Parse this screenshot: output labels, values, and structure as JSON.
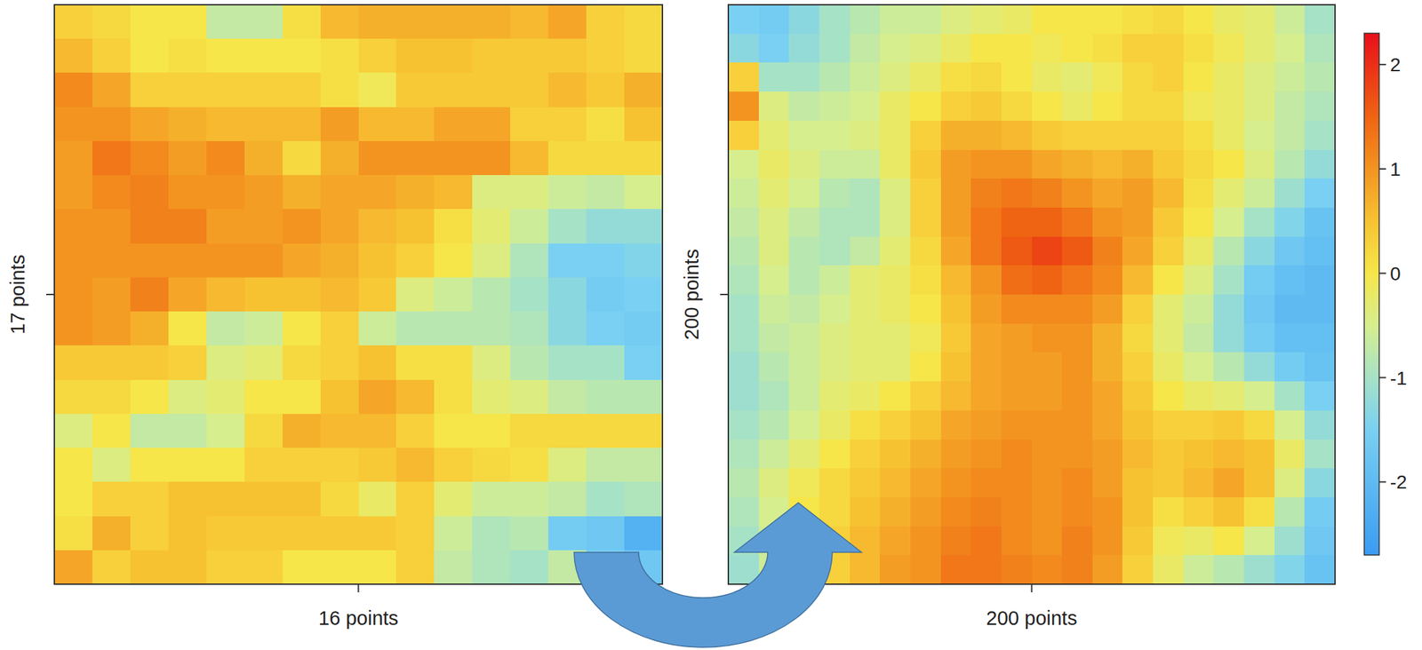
{
  "chart_data": [
    {
      "type": "heatmap",
      "x_label": "16 points",
      "y_label": "17 points",
      "cells": [
        [
          0.3,
          0.2,
          0,
          0,
          -0.7,
          -0.7,
          0.1,
          0.6,
          0.7,
          0.7,
          0.7,
          0.7,
          0.6,
          0.8,
          0.3,
          0.2
        ],
        [
          0.6,
          0.3,
          0,
          0.1,
          0,
          0,
          0,
          0.1,
          0.3,
          0.5,
          0.5,
          0.4,
          0.4,
          0.4,
          0.3,
          0.2
        ],
        [
          1.1,
          0.8,
          0.3,
          0.3,
          0.3,
          0.3,
          0.3,
          0.1,
          -0.1,
          0.4,
          0.4,
          0.4,
          0.4,
          0.6,
          0.4,
          0.7
        ],
        [
          1.0,
          1.0,
          0.8,
          0.7,
          0.6,
          0.6,
          0.6,
          0.9,
          0.6,
          0.6,
          0.8,
          0.8,
          0.3,
          0.3,
          0.1,
          0.5
        ],
        [
          0.9,
          1.3,
          1.1,
          0.9,
          1.1,
          0.7,
          0.2,
          0.7,
          1.0,
          1.0,
          1.0,
          1.0,
          0.6,
          0.2,
          0.2,
          0.2
        ],
        [
          0.9,
          1.1,
          1.2,
          1.0,
          1.0,
          0.9,
          0.7,
          0.8,
          0.8,
          0.7,
          0.6,
          -0.4,
          -0.4,
          -0.6,
          -0.7,
          -0.5
        ],
        [
          1.0,
          1.0,
          1.2,
          1.2,
          0.9,
          0.9,
          1.0,
          0.8,
          0.6,
          0.5,
          0.1,
          -0.3,
          -0.6,
          -1.0,
          -1.2,
          -1.2
        ],
        [
          1.0,
          1.0,
          1.0,
          1.0,
          1.0,
          1.0,
          0.8,
          0.7,
          0.5,
          0.3,
          0,
          -0.4,
          -0.9,
          -1.5,
          -1.5,
          -1.4
        ],
        [
          1.0,
          0.9,
          1.2,
          0.8,
          0.6,
          0.5,
          0.5,
          0.6,
          0.4,
          -0.4,
          -0.6,
          -0.8,
          -1.0,
          -1.3,
          -1.6,
          -1.5
        ],
        [
          1.0,
          0.9,
          0.7,
          0,
          -0.7,
          -0.6,
          0,
          0.3,
          -0.6,
          -0.8,
          -0.8,
          -0.8,
          -0.9,
          -1.3,
          -1.5,
          -1.6
        ],
        [
          0.4,
          0.4,
          0.4,
          0.3,
          -0.4,
          -0.3,
          0.2,
          0.3,
          0.5,
          0.1,
          0.1,
          -0.4,
          -0.8,
          -1.0,
          -1.0,
          -1.5
        ],
        [
          0.2,
          0.2,
          0,
          -0.4,
          -0.3,
          0,
          0,
          0.5,
          0.8,
          0.6,
          0.1,
          -0.3,
          -0.4,
          -0.7,
          -0.8,
          -0.8
        ],
        [
          -0.4,
          0,
          -0.7,
          -0.7,
          -0.5,
          0.2,
          0.7,
          0.6,
          0.6,
          0.3,
          0,
          0,
          0.2,
          0.2,
          0.2,
          0.2
        ],
        [
          0,
          -0.4,
          0,
          0,
          0,
          0.3,
          0.3,
          0.3,
          0.4,
          0.6,
          0.3,
          0.2,
          0.1,
          -0.4,
          -0.7,
          -0.7
        ],
        [
          0,
          0.3,
          0.3,
          0.5,
          0.5,
          0.5,
          0.5,
          0.2,
          -0.2,
          0.3,
          -0.3,
          -0.6,
          -0.6,
          -0.7,
          -1.0,
          -0.9
        ],
        [
          0.1,
          0.7,
          0.3,
          0.5,
          0.4,
          0.4,
          0.4,
          0.4,
          0.4,
          0.3,
          -0.6,
          -0.9,
          -0.8,
          -1.6,
          -1.7,
          -2.2
        ],
        [
          0.8,
          0.3,
          0.5,
          0.5,
          0.3,
          0.3,
          0,
          0,
          0,
          0.3,
          -0.7,
          -0.9,
          -1.0,
          -0.7,
          -1.5,
          -1.7
        ]
      ]
    },
    {
      "type": "heatmap",
      "x_label": "200 points",
      "y_label": "200 points",
      "cells": [
        [
          -1.5,
          -1.6,
          -1.3,
          -1.0,
          -0.8,
          -0.6,
          -0.6,
          -0.4,
          -0.3,
          -0.2,
          0,
          0,
          0,
          0.1,
          0.2,
          0,
          -0.2,
          -0.3,
          -0.6,
          -1.0
        ],
        [
          -1.3,
          -1.5,
          -1.2,
          -1.0,
          -0.7,
          -0.5,
          -0.4,
          -0.2,
          0,
          0,
          -0.1,
          0,
          0.1,
          0.3,
          0.3,
          0.1,
          -0.1,
          -0.3,
          -0.5,
          -0.9
        ],
        [
          0.3,
          -1.0,
          -1.0,
          -0.8,
          -0.6,
          -0.4,
          -0.2,
          0.1,
          0.2,
          0,
          -0.2,
          -0.3,
          -0.1,
          0.2,
          0.3,
          0,
          -0.2,
          -0.4,
          -0.6,
          -0.8
        ],
        [
          1.0,
          -0.4,
          -0.7,
          -0.6,
          -0.5,
          -0.2,
          0,
          0.3,
          0.4,
          0.2,
          0,
          -0.2,
          0,
          0.2,
          0.2,
          -0.1,
          -0.2,
          -0.4,
          -0.7,
          -0.9
        ],
        [
          0.3,
          -0.3,
          -0.5,
          -0.5,
          -0.4,
          -0.2,
          0.3,
          0.7,
          0.7,
          0.6,
          0.4,
          0.3,
          0.3,
          0.3,
          0.3,
          0.1,
          -0.2,
          -0.5,
          -0.7,
          -1.0
        ],
        [
          -0.5,
          -0.2,
          -0.4,
          -0.6,
          -0.6,
          -0.2,
          0.4,
          0.9,
          1.0,
          1.0,
          0.8,
          0.7,
          0.6,
          0.7,
          0.4,
          0.2,
          0,
          -0.4,
          -0.8,
          -1.2
        ],
        [
          -0.6,
          -0.3,
          -0.5,
          -0.8,
          -0.9,
          -0.4,
          0.3,
          0.9,
          1.2,
          1.3,
          1.2,
          1.0,
          0.8,
          0.9,
          0.6,
          0.1,
          -0.3,
          -0.6,
          -1.1,
          -1.5
        ],
        [
          -0.7,
          -0.4,
          -0.7,
          -0.9,
          -0.9,
          -0.4,
          0.3,
          0.9,
          1.3,
          1.5,
          1.5,
          1.3,
          1.0,
          0.9,
          0.4,
          0,
          -0.5,
          -1.0,
          -1.4,
          -1.8
        ],
        [
          -0.8,
          -0.4,
          -0.8,
          -0.9,
          -0.7,
          -0.3,
          0.2,
          0.8,
          1.3,
          1.6,
          1.8,
          1.6,
          1.2,
          0.8,
          0.3,
          -0.2,
          -0.8,
          -1.3,
          -1.7,
          -1.9
        ],
        [
          -0.9,
          -0.5,
          -0.8,
          -0.6,
          -0.3,
          -0.2,
          0.1,
          0.6,
          1.0,
          1.4,
          1.5,
          1.3,
          1.1,
          0.6,
          0,
          -0.4,
          -1.0,
          -1.6,
          -1.9,
          -2.0
        ],
        [
          -1.0,
          -0.6,
          -0.7,
          -0.5,
          -0.3,
          -0.2,
          0,
          0.5,
          0.9,
          1.1,
          1.1,
          1.1,
          0.9,
          0.3,
          -0.3,
          -0.6,
          -1.2,
          -1.7,
          -2.0,
          -2.0
        ],
        [
          -1.0,
          -0.7,
          -0.6,
          -0.4,
          -0.3,
          -0.3,
          -0.1,
          0.4,
          0.8,
          0.9,
          1.0,
          1.0,
          0.7,
          0.2,
          -0.3,
          -0.7,
          -1.2,
          -1.6,
          -1.9,
          -1.9
        ],
        [
          -1.1,
          -0.8,
          -0.6,
          -0.4,
          -0.3,
          -0.3,
          0,
          0.5,
          0.8,
          0.9,
          0.9,
          1.0,
          0.7,
          0.3,
          -0.2,
          -0.5,
          -0.8,
          -1.2,
          -1.6,
          -1.8
        ],
        [
          -1.1,
          -0.9,
          -0.6,
          -0.3,
          -0.2,
          0,
          0.3,
          0.6,
          0.8,
          0.9,
          0.9,
          1.0,
          0.8,
          0.4,
          0,
          -0.2,
          -0.3,
          -0.5,
          -1.0,
          -1.5
        ],
        [
          -1.0,
          -0.8,
          -0.5,
          -0.2,
          0.1,
          0.3,
          0.5,
          0.8,
          0.9,
          1.0,
          1.0,
          1.0,
          0.8,
          0.5,
          0.3,
          0.3,
          0.4,
          0.2,
          -0.5,
          -1.2
        ],
        [
          -0.9,
          -0.6,
          -0.3,
          0,
          0.3,
          0.5,
          0.7,
          0.9,
          1.0,
          1.1,
          1.0,
          1.0,
          0.9,
          0.6,
          0.4,
          0.5,
          0.6,
          0.5,
          -0.2,
          -1.0
        ],
        [
          -0.8,
          -0.4,
          -0.1,
          0.2,
          0.4,
          0.6,
          0.8,
          1.0,
          1.1,
          1.1,
          1.0,
          1.1,
          0.9,
          0.5,
          0.4,
          0.6,
          0.8,
          0.5,
          -0.4,
          -1.3
        ],
        [
          -0.9,
          -0.5,
          0,
          0.2,
          0.5,
          0.7,
          0.9,
          1.1,
          1.2,
          1.1,
          1.0,
          1.1,
          1.0,
          0.5,
          0.1,
          0.3,
          0.5,
          0.1,
          -0.8,
          -1.6
        ],
        [
          -1.0,
          -0.6,
          0,
          0.3,
          0.6,
          0.8,
          1.0,
          1.2,
          1.3,
          1.1,
          1.0,
          1.2,
          1.0,
          0.4,
          -0.1,
          -0.2,
          0,
          -0.5,
          -1.1,
          -1.7
        ],
        [
          -1.1,
          -0.6,
          0,
          0.3,
          0.6,
          0.9,
          1.0,
          1.3,
          1.3,
          1.2,
          1.1,
          1.2,
          0.9,
          0.3,
          -0.2,
          -0.6,
          -0.8,
          -1.1,
          -1.4,
          -1.8
        ]
      ]
    }
  ],
  "colorbar": {
    "range": [
      -2.7,
      2.3
    ],
    "ticks": [
      -2,
      -1,
      0,
      1,
      2
    ]
  }
}
